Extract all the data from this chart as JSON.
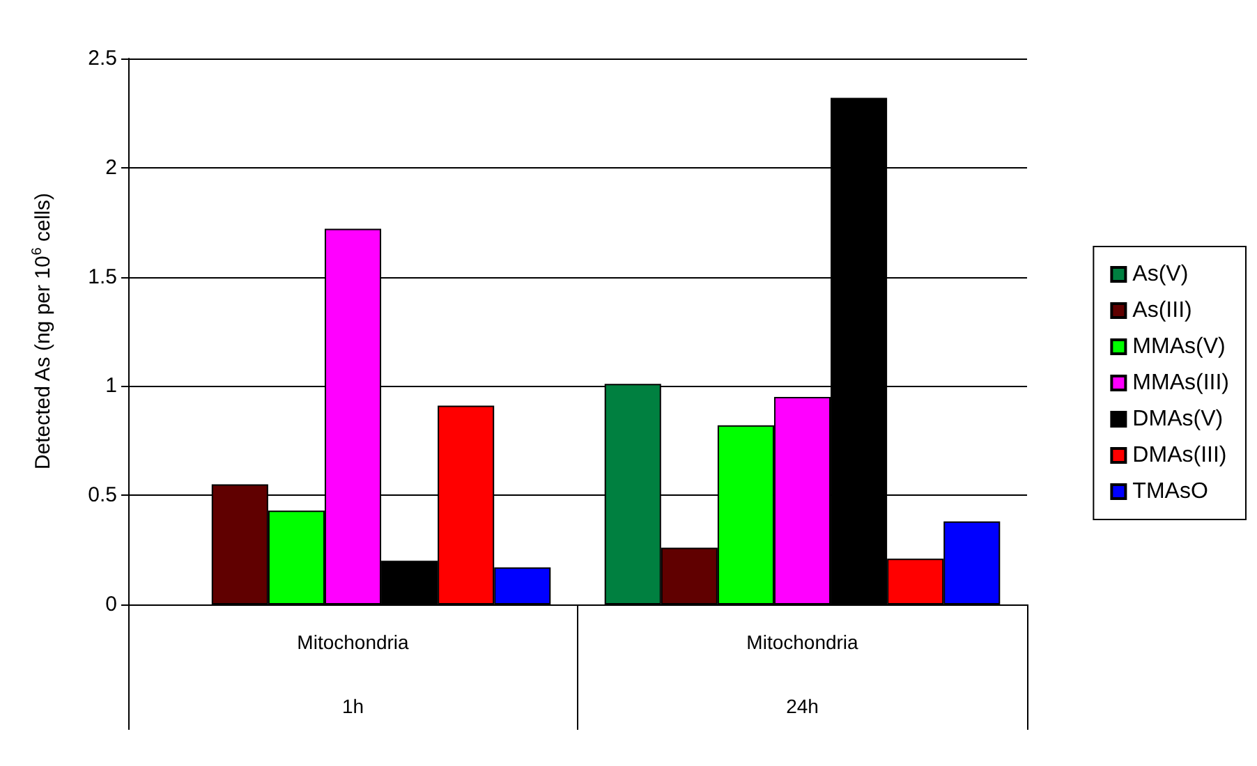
{
  "chart_data": {
    "type": "bar",
    "ylabel": "Detected As (ng per 10$^{6}$ cells)",
    "categories": [
      "Mitochondria\n1h",
      "Mitochondria\n24h"
    ],
    "series": [
      {
        "name": "As(V)",
        "color": "#008040",
        "values": [
          null,
          1.01
        ]
      },
      {
        "name": "As(III)",
        "color": "#600000",
        "values": [
          0.55,
          0.26
        ]
      },
      {
        "name": "MMAs(V)",
        "color": "#00ff00",
        "values": [
          0.43,
          0.82
        ]
      },
      {
        "name": "MMAs(III)",
        "color": "#ff00ff",
        "values": [
          1.72,
          0.95
        ]
      },
      {
        "name": "DMAs(V)",
        "color": "#000000",
        "values": [
          0.2,
          2.32
        ]
      },
      {
        "name": "DMAs(III)",
        "color": "#ff0000",
        "values": [
          0.91,
          0.21
        ]
      },
      {
        "name": "TMAsO",
        "color": "#0000ff",
        "values": [
          0.17,
          0.38
        ]
      }
    ],
    "ylim": [
      0,
      2.5
    ],
    "yticks": [
      0,
      0.5,
      1,
      1.5,
      2,
      2.5
    ],
    "grid": "y",
    "legend": "right"
  }
}
